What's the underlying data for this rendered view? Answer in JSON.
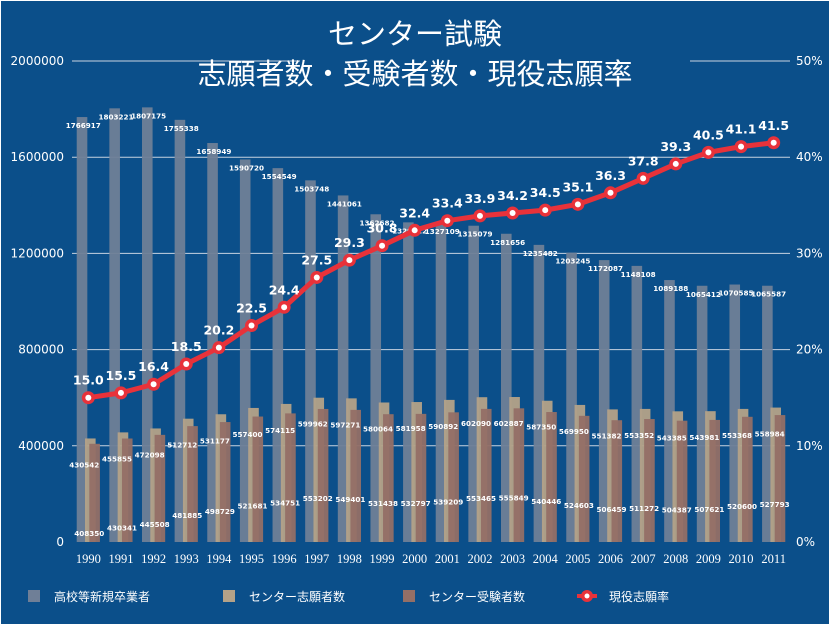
{
  "chart_data": {
    "type": "bar",
    "title": [
      "センター試験",
      "志願者数・受験者数・現役志願率"
    ],
    "categories": [
      "1990",
      "1991",
      "1992",
      "1993",
      "1994",
      "1995",
      "1996",
      "1997",
      "1998",
      "1999",
      "2000",
      "2001",
      "2002",
      "2003",
      "2004",
      "2005",
      "2006",
      "2007",
      "2008",
      "2009",
      "2010",
      "2011"
    ],
    "series": [
      {
        "name": "高校等新規卒業者",
        "kind": "bar",
        "axis": "left",
        "color": "#6f7f97",
        "values": [
          1766917,
          1803221,
          1807175,
          1755338,
          1658949,
          1590720,
          1554549,
          1503748,
          1441061,
          1362682,
          1329122,
          1327109,
          1315079,
          1281656,
          1235482,
          1203245,
          1172087,
          1148108,
          1089188,
          1065412,
          1070585,
          1065587
        ]
      },
      {
        "name": "センター志願者数",
        "kind": "bar",
        "axis": "left",
        "color": "#b4a288",
        "values": [
          430542,
          455855,
          472098,
          512712,
          531177,
          557400,
          574115,
          599962,
          597271,
          580064,
          581958,
          590892,
          602090,
          602887,
          587350,
          569950,
          551382,
          553352,
          543385,
          543981,
          553368,
          558984
        ]
      },
      {
        "name": "センター受験者数",
        "kind": "bar",
        "axis": "left",
        "color": "#946f66",
        "values": [
          408350,
          430341,
          445508,
          481885,
          498729,
          521681,
          534751,
          553202,
          549401,
          531438,
          532797,
          539209,
          553465,
          555849,
          540446,
          524603,
          506459,
          511272,
          504387,
          507621,
          520600,
          527793
        ]
      },
      {
        "name": "現役志願率",
        "kind": "line",
        "axis": "right",
        "color": "#e8323a",
        "values": [
          15.0,
          15.5,
          16.4,
          18.5,
          20.2,
          22.5,
          24.4,
          27.5,
          29.3,
          30.8,
          32.4,
          33.4,
          33.9,
          34.2,
          34.5,
          35.1,
          36.3,
          37.8,
          39.3,
          40.5,
          41.1,
          41.5
        ]
      }
    ],
    "bar_labels": {
      "高校等新規卒業者": [
        "1766917",
        "1803221",
        "1807175",
        "1755338",
        "1658949",
        "1590720",
        "1554549",
        "1503748",
        "1441061",
        "1362682",
        "1329122",
        "1327109",
        "1315079",
        "1281656",
        "1235482",
        "1203245",
        "1172087",
        "1148108",
        "1089188",
        "1065412",
        "1070585",
        "1065587"
      ],
      "センター志願者数": [
        "430542",
        "455855",
        "472098",
        "512712",
        "531177",
        "557400",
        "574115",
        "599962",
        "597271",
        "580064",
        "581958",
        "590892",
        "602090",
        "602887",
        "587350",
        "569950",
        "551382",
        "553352",
        "543385",
        "543981",
        "553368",
        "558984"
      ],
      "センター受験者数": [
        "408350",
        "430341",
        "445508",
        "481885",
        "498729",
        "521681",
        "534751",
        "553202",
        "549401",
        "531438",
        "532797",
        "539209",
        "553465",
        "555849",
        "540446",
        "524603",
        "506459",
        "511272",
        "504387",
        "507621",
        "520600",
        "527793"
      ]
    },
    "rate_labels": [
      "15.0",
      "15.5",
      "16.4",
      "18.5",
      "20.2",
      "22.5",
      "24.4",
      "27.5",
      "29.3",
      "30.8",
      "32.4",
      "33.4",
      "33.9",
      "34.2",
      "34.5",
      "35.1",
      "36.3",
      "37.8",
      "39.3",
      "40.5",
      "41.1",
      "41.5"
    ],
    "y_left": {
      "range": [
        0,
        2000000
      ],
      "ticks": [
        "0",
        "400000",
        "800000",
        "1200000",
        "1600000",
        "2000000"
      ],
      "tick_values": [
        0,
        400000,
        800000,
        1200000,
        1600000,
        2000000
      ]
    },
    "y_right": {
      "range": [
        0,
        50
      ],
      "ticks": [
        "0%",
        "10%",
        "20%",
        "30%",
        "40%",
        "50%"
      ],
      "tick_values": [
        0,
        10,
        20,
        30,
        40,
        50
      ]
    },
    "grid": true,
    "legend_position": "bottom",
    "colors": {
      "panel": "#0b4f8a",
      "frame": "#2a62a0",
      "grid": "#c8d3e0",
      "legend_swatch_line": "#e8323a",
      "marker_fill": "#ffffff"
    }
  }
}
